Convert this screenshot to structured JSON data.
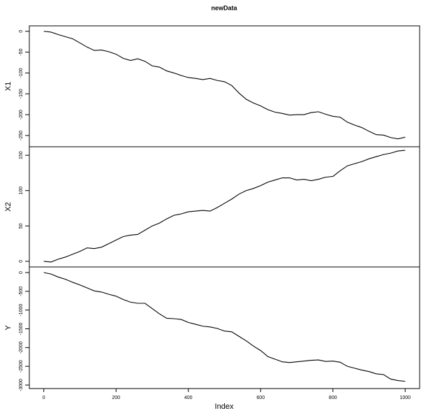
{
  "chart_data": {
    "type": "line",
    "title": "newData",
    "xlabel": "Index",
    "x": [
      0,
      20,
      40,
      60,
      80,
      100,
      120,
      140,
      160,
      180,
      200,
      220,
      240,
      260,
      280,
      300,
      320,
      340,
      360,
      380,
      400,
      420,
      440,
      460,
      480,
      500,
      520,
      540,
      560,
      580,
      600,
      620,
      640,
      660,
      680,
      700,
      720,
      740,
      760,
      780,
      800,
      820,
      840,
      860,
      880,
      900,
      920,
      940,
      960,
      980,
      1000
    ],
    "xlim": [
      -40,
      1040
    ],
    "xticks": [
      0,
      200,
      400,
      600,
      800,
      1000
    ],
    "series": [
      {
        "name": "X1",
        "color": "#000000",
        "ylim": [
          -277,
          13
        ],
        "yticks": [
          0,
          -50,
          -100,
          -150,
          -200,
          -250
        ],
        "values": [
          0,
          -2,
          -8,
          -13,
          -18,
          -28,
          -38,
          -46,
          -45,
          -49,
          -55,
          -65,
          -70,
          -66,
          -72,
          -83,
          -86,
          -95,
          -100,
          -106,
          -111,
          -113,
          -116,
          -113,
          -118,
          -121,
          -130,
          -148,
          -163,
          -172,
          -179,
          -188,
          -194,
          -197,
          -201,
          -200,
          -200,
          -195,
          -193,
          -199,
          -204,
          -206,
          -218,
          -225,
          -231,
          -240,
          -248,
          -249,
          -255,
          -258,
          -254
        ]
      },
      {
        "name": "X2",
        "color": "#000000",
        "ylim": [
          -8,
          162
        ],
        "yticks": [
          0,
          50,
          100,
          150
        ],
        "values": [
          0,
          -1,
          3,
          6,
          10,
          14,
          19,
          18,
          20,
          25,
          30,
          35,
          37,
          38,
          44,
          50,
          54,
          60,
          65,
          67,
          70,
          71,
          72,
          71,
          76,
          82,
          88,
          95,
          100,
          103,
          107,
          112,
          115,
          118,
          118,
          115,
          116,
          114,
          116,
          119,
          120,
          128,
          135,
          138,
          141,
          145,
          148,
          151,
          153,
          156,
          157
        ]
      },
      {
        "name": "Y",
        "color": "#000000",
        "ylim": [
          -3093,
          149
        ],
        "yticks": [
          0,
          -500,
          -1000,
          -1500,
          -2000,
          -2500,
          -3000
        ],
        "values": [
          0,
          -40,
          -120,
          -180,
          -260,
          -330,
          -410,
          -490,
          -520,
          -580,
          -630,
          -720,
          -790,
          -820,
          -820,
          -960,
          -1100,
          -1220,
          -1230,
          -1250,
          -1330,
          -1380,
          -1430,
          -1450,
          -1490,
          -1560,
          -1580,
          -1700,
          -1820,
          -1960,
          -2080,
          -2240,
          -2310,
          -2380,
          -2400,
          -2380,
          -2360,
          -2340,
          -2330,
          -2370,
          -2360,
          -2390,
          -2500,
          -2550,
          -2600,
          -2640,
          -2700,
          -2720,
          -2840,
          -2880,
          -2900
        ]
      }
    ]
  }
}
